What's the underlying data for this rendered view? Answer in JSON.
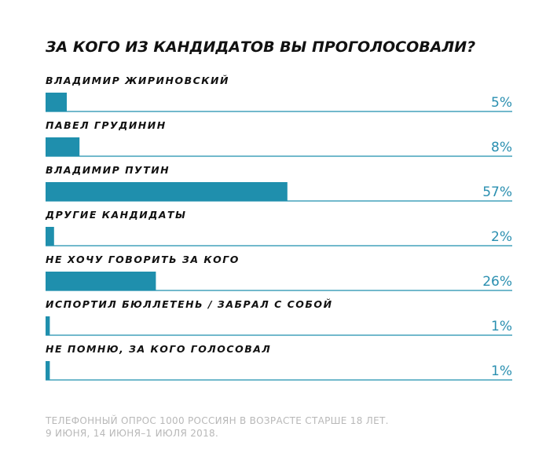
{
  "chart_data": {
    "type": "bar",
    "orientation": "horizontal",
    "title": "ЗА КОГО ИЗ КАНДИДАТОВ ВЫ ПРОГОЛОСОВАЛИ?",
    "categories": [
      "ВЛАДИМИР ЖИРИНОВСКИЙ",
      "ПАВЕЛ ГРУДИНИН",
      "ВЛАДИМИР ПУТИН",
      "ДРУГИЕ КАНДИДАТЫ",
      "НЕ ХОЧУ ГОВОРИТЬ ЗА КОГО",
      "ИСПОРТИЛ БЮЛЛЕТЕНЬ / ЗАБРАЛ С СОБОЙ",
      "НЕ ПОМНЮ, ЗА КОГО ГОЛОСОВАЛ"
    ],
    "values": [
      5,
      8,
      57,
      2,
      26,
      1,
      1
    ],
    "value_labels": [
      "5%",
      "8%",
      "57%",
      "2%",
      "26%",
      "1%",
      "1%"
    ],
    "color": "#1f8fad",
    "note": [
      "ТЕЛЕФОННЫЙ ОПРОС 1000 РОССИЯН В ВОЗРАСТЕ СТАРШЕ 18 ЛЕТ.",
      "9 ИЮНЯ, 14 ИЮНЯ–1 ИЮЛЯ 2018."
    ]
  }
}
